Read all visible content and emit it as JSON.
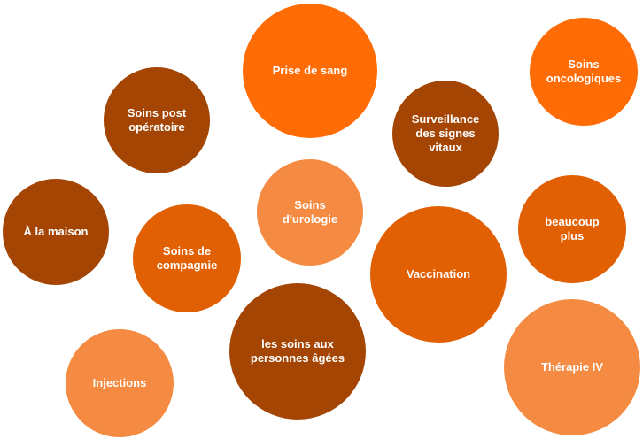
{
  "colors": {
    "dark": "#A44504",
    "medium": "#E26004",
    "bright": "#FF6B05",
    "light": "#F58B42"
  },
  "bubbles": [
    {
      "id": "prise-de-sang",
      "label": "Prise de sang",
      "color": "bright"
    },
    {
      "id": "soins-oncologiques",
      "label": "Soins\noncologiques",
      "color": "bright"
    },
    {
      "id": "soins-post-operatoire",
      "label": "Soins post\nopératoire",
      "color": "dark"
    },
    {
      "id": "surveillance-signes-vitaux",
      "label": "Surveillance\ndes signes\nvitaux",
      "color": "dark"
    },
    {
      "id": "a-la-maison",
      "label": "À la maison",
      "color": "dark"
    },
    {
      "id": "soins-urologie",
      "label": "Soins\nd'urologie",
      "color": "light"
    },
    {
      "id": "beaucoup-plus",
      "label": "beaucoup\nplus",
      "color": "medium"
    },
    {
      "id": "soins-de-compagnie",
      "label": "Soins de\ncompagnie",
      "color": "medium"
    },
    {
      "id": "vaccination",
      "label": "Vaccination",
      "color": "medium"
    },
    {
      "id": "soins-personnes-agees",
      "label": "les soins aux\npersonnes âgées",
      "color": "dark"
    },
    {
      "id": "injections",
      "label": "Injections",
      "color": "light"
    },
    {
      "id": "therapie-iv",
      "label": "Thérapie IV",
      "color": "light"
    }
  ]
}
